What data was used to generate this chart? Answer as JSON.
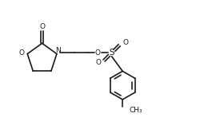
{
  "bg_color": "#ffffff",
  "line_color": "#1a1a1a",
  "line_width": 1.2,
  "figsize": [
    2.51,
    1.62
  ],
  "dpi": 100,
  "xlim": [
    0,
    10
  ],
  "ylim": [
    0,
    6.5
  ]
}
